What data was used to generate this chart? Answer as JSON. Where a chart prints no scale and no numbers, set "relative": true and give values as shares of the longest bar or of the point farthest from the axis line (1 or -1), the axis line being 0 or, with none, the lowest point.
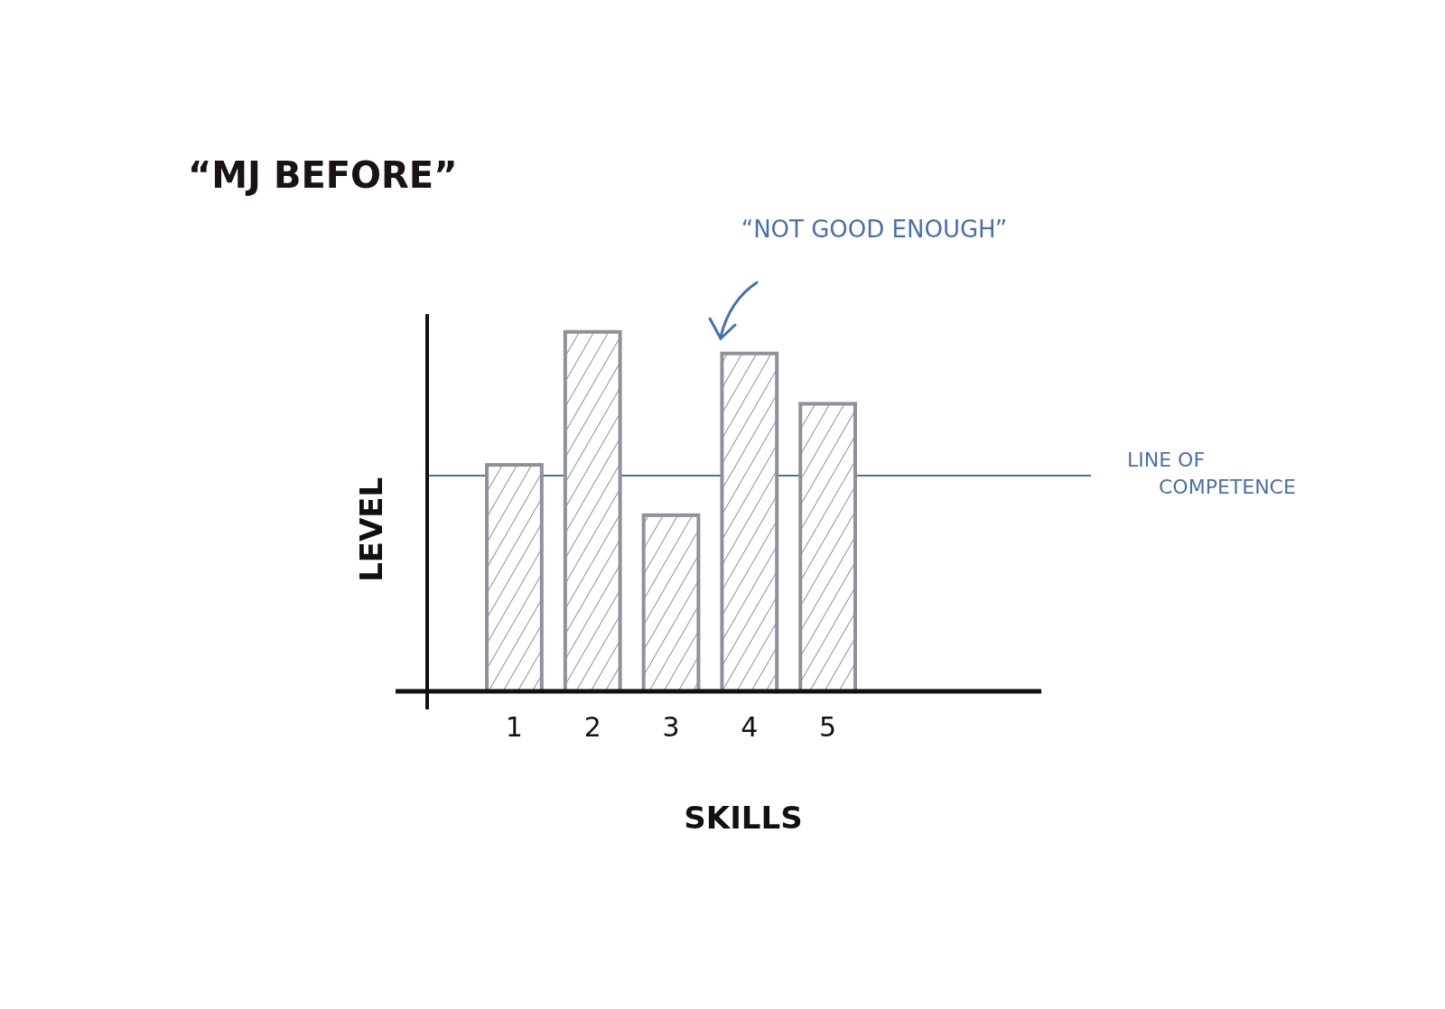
{
  "chart_data": {
    "type": "bar",
    "title": "“MJ BEFORE”",
    "xlabel": "SKILLS",
    "ylabel": "LEVEL",
    "relative": true,
    "categories": [
      "1",
      "2",
      "3",
      "4",
      "5"
    ],
    "values": [
      0.63,
      1,
      0.49,
      0.94,
      0.8
    ],
    "color": "#8e919c",
    "ref_lines": [
      {
        "axis": "y",
        "value": 0.6,
        "label": "LINE OF COMPETENCE",
        "color": "#4a6fb0"
      }
    ],
    "annotations": [
      "“NOT GOOD ENOUGH”"
    ]
  }
}
